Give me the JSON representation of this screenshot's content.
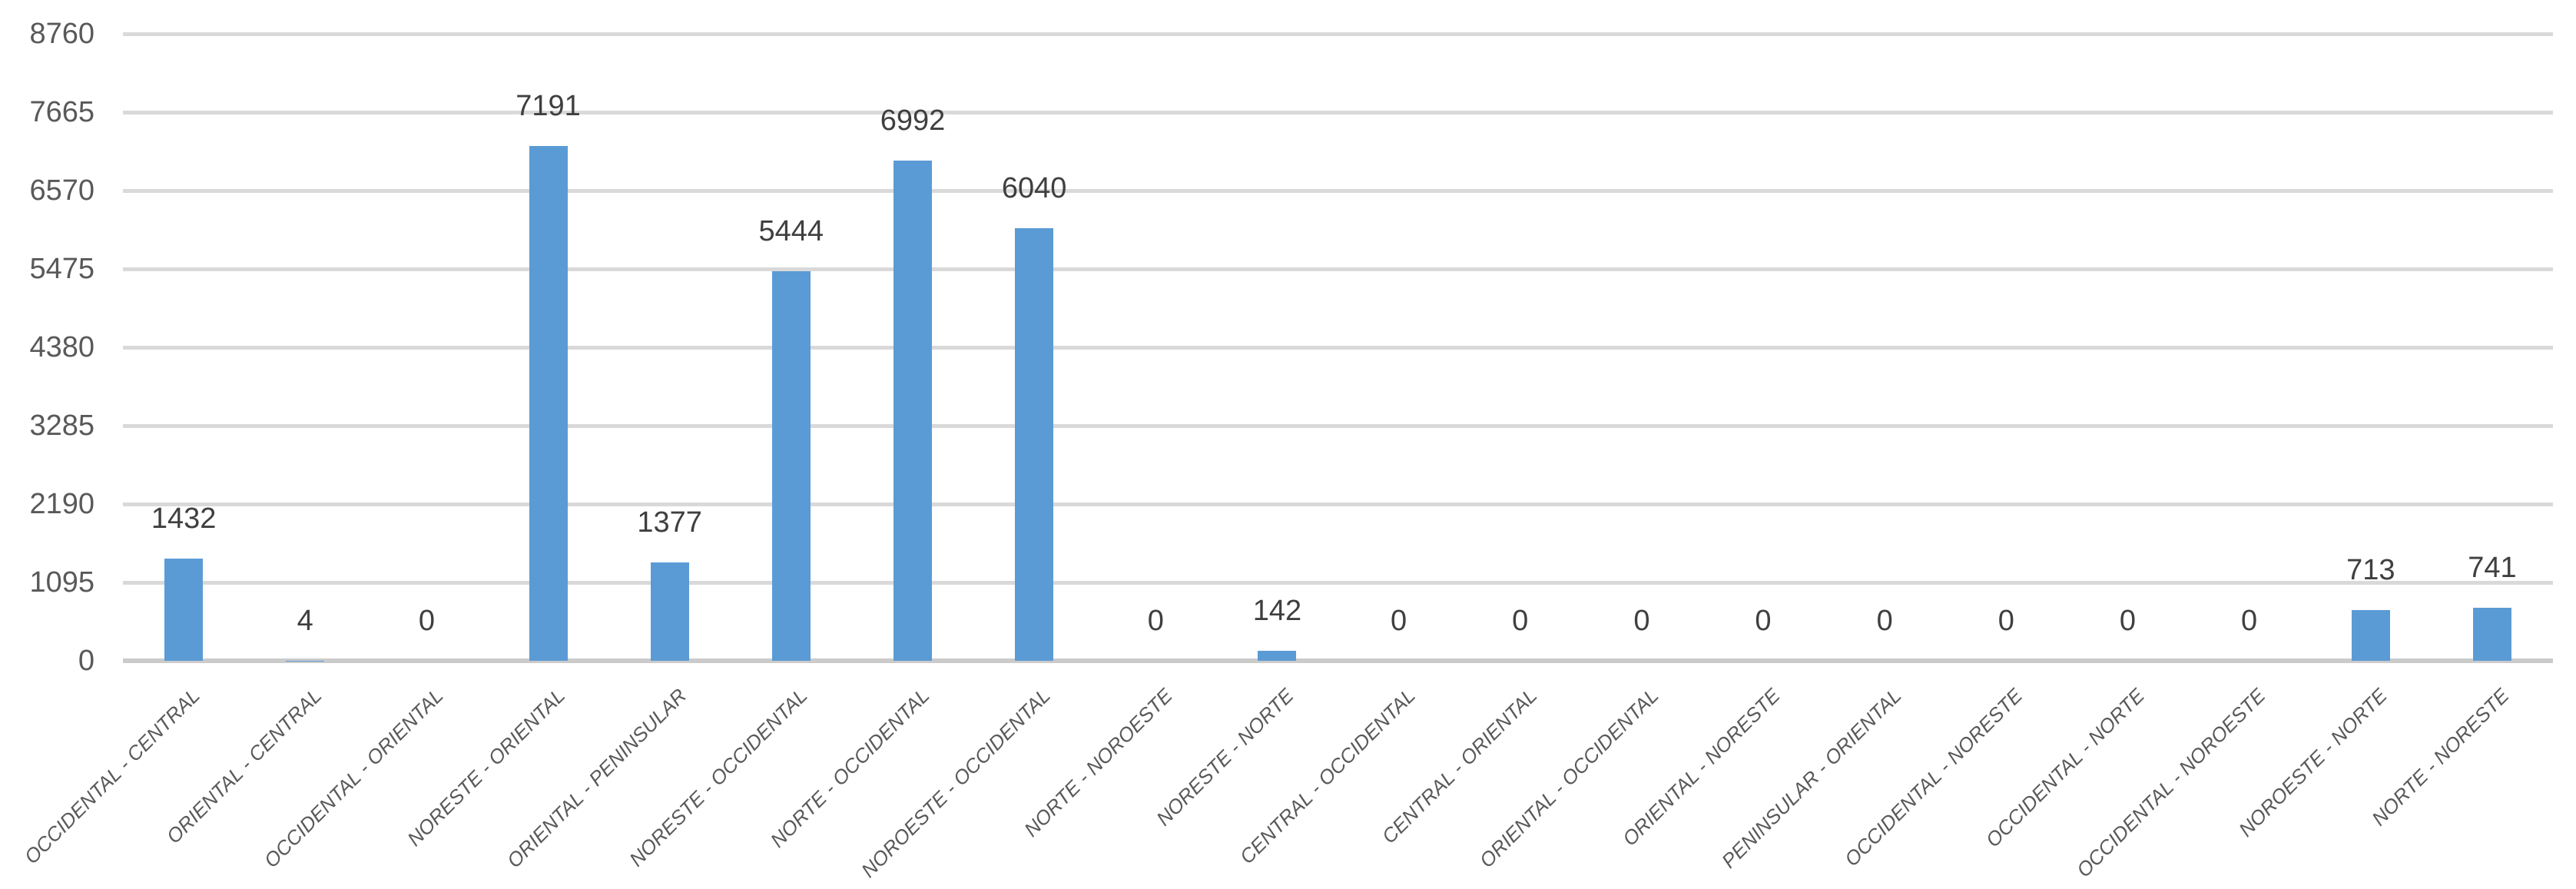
{
  "chart_data": {
    "type": "bar",
    "title": "",
    "xlabel": "",
    "ylabel": "",
    "categories": [
      "OCCIDENTAL - CENTRAL",
      "ORIENTAL - CENTRAL",
      "OCCIDENTAL - ORIENTAL",
      "NORESTE - ORIENTAL",
      "ORIENTAL - PENINSULAR",
      "NORESTE - OCCIDENTAL",
      "NORTE - OCCIDENTAL",
      "NOROESTE - OCCIDENTAL",
      "NORTE - NOROESTE",
      "NORESTE - NORTE",
      "CENTRAL - OCCIDENTAL",
      "CENTRAL - ORIENTAL",
      "ORIENTAL - OCCIDENTAL",
      "ORIENTAL - NORESTE",
      "PENINSULAR - ORIENTAL",
      "OCCIDENTAL - NORESTE",
      "OCCIDENTAL - NORTE",
      "OCCIDENTAL - NOROESTE",
      "NOROESTE - NORTE",
      "NORTE - NORESTE"
    ],
    "values": [
      1432,
      4,
      0,
      7191,
      1377,
      5444,
      6992,
      6040,
      0,
      142,
      0,
      0,
      0,
      0,
      0,
      0,
      0,
      0,
      713,
      741
    ],
    "data_labels": [
      "1432",
      "4",
      "0",
      "7191",
      "1377",
      "5444",
      "6992",
      "6040",
      "0",
      "142",
      "0",
      "0",
      "0",
      "0",
      "0",
      "0",
      "0",
      "0",
      "713",
      "741"
    ],
    "yticks": [
      0,
      1095,
      2190,
      3285,
      4380,
      5475,
      6570,
      7665,
      8760
    ],
    "ylim": [
      0,
      8760
    ],
    "grid": true,
    "legend_position": "none",
    "data_label_position": "outside-end",
    "bar_color": "#5B9BD5",
    "gridline_color": "#D9D9D9",
    "axis_line_color": "#CBCBCB",
    "tick_label_color": "#595959",
    "data_label_color": "#3F3F3F"
  }
}
